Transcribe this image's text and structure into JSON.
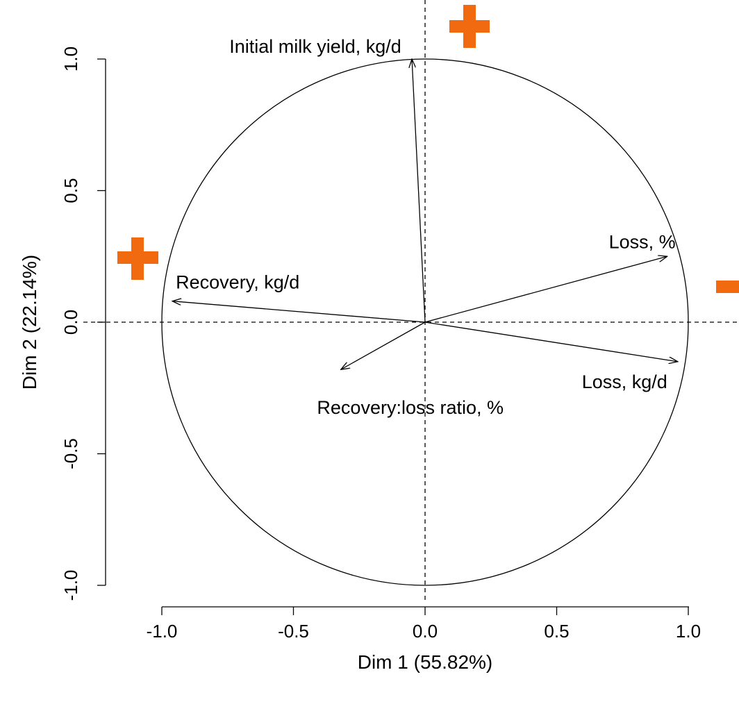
{
  "chart_data": {
    "type": "scatter",
    "subtype": "pca-correlation-circle",
    "title": "",
    "xlabel": "Dim 1 (55.82%)",
    "ylabel": "Dim 2 (22.14%)",
    "xlim": [
      -1.0,
      1.0
    ],
    "ylim": [
      -1.0,
      1.0
    ],
    "x_ticks": [
      "-1.0",
      "-0.5",
      "0.0",
      "0.5",
      "1.0"
    ],
    "y_ticks": [
      "-1.0",
      "-0.5",
      "0.0",
      "0.5",
      "1.0"
    ],
    "grid": false,
    "reference_lines": [
      "x = 0 (dashed)",
      "y = 0 (dashed)"
    ],
    "unit_circle": true,
    "series": [
      {
        "name": "Initial milk yield, kg/d",
        "x": -0.05,
        "y": 1.0
      },
      {
        "name": "Recovery, kg/d",
        "x": -0.96,
        "y": 0.08
      },
      {
        "name": "Loss, %",
        "x": 0.92,
        "y": 0.25
      },
      {
        "name": "Loss, kg/d",
        "x": 0.96,
        "y": -0.15
      },
      {
        "name": "Recovery:loss ratio, %",
        "x": -0.32,
        "y": -0.18
      }
    ],
    "annotations": [
      {
        "symbol": "plus",
        "position": "top, above origin",
        "color": "#f26a0f"
      },
      {
        "symbol": "plus",
        "position": "left, beside Recovery",
        "color": "#f26a0f"
      },
      {
        "symbol": "minus",
        "position": "right, beside Loss",
        "color": "#f26a0f"
      }
    ]
  }
}
